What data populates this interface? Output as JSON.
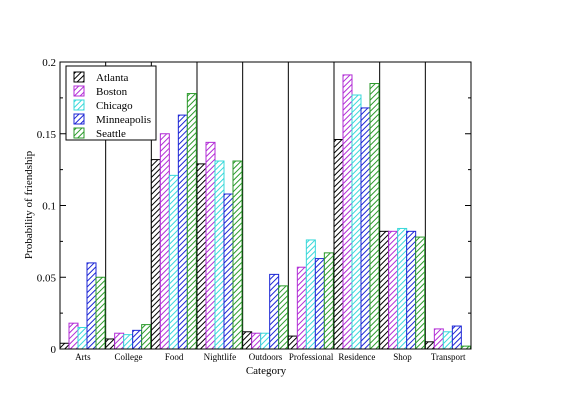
{
  "chart_data": {
    "type": "bar",
    "title": "",
    "xlabel": "Category",
    "ylabel": "Probability of friendship",
    "ylim": [
      0,
      0.2
    ],
    "yticks": [
      0,
      0.05,
      0.1,
      0.15,
      0.2
    ],
    "ytick_labels": [
      "0",
      "0.05",
      "0.1",
      "0.15",
      "0.2"
    ],
    "grid": false,
    "category_separators": true,
    "legend_position": "top-left",
    "bar_pattern": "diagonal-hatch",
    "categories": [
      "Arts",
      "College",
      "Food",
      "Nightlife",
      "Outdoors",
      "Professional",
      "Residence",
      "Shop",
      "Transport"
    ],
    "series": [
      {
        "name": "Atlanta",
        "color": "#000000",
        "values": [
          0.004,
          0.007,
          0.132,
          0.129,
          0.012,
          0.009,
          0.146,
          0.082,
          0.005
        ]
      },
      {
        "name": "Boston",
        "color": "#b22cd6",
        "values": [
          0.018,
          0.011,
          0.15,
          0.144,
          0.011,
          0.057,
          0.191,
          0.082,
          0.014
        ]
      },
      {
        "name": "Chicago",
        "color": "#38d8da",
        "values": [
          0.015,
          0.01,
          0.121,
          0.131,
          0.011,
          0.076,
          0.177,
          0.084,
          0.012
        ]
      },
      {
        "name": "Minneapolis",
        "color": "#1c26d6",
        "values": [
          0.06,
          0.013,
          0.163,
          0.108,
          0.052,
          0.063,
          0.168,
          0.082,
          0.016
        ]
      },
      {
        "name": "Seattle",
        "color": "#2b9a2b",
        "values": [
          0.05,
          0.017,
          0.178,
          0.131,
          0.044,
          0.067,
          0.185,
          0.078,
          0.002
        ]
      }
    ]
  }
}
